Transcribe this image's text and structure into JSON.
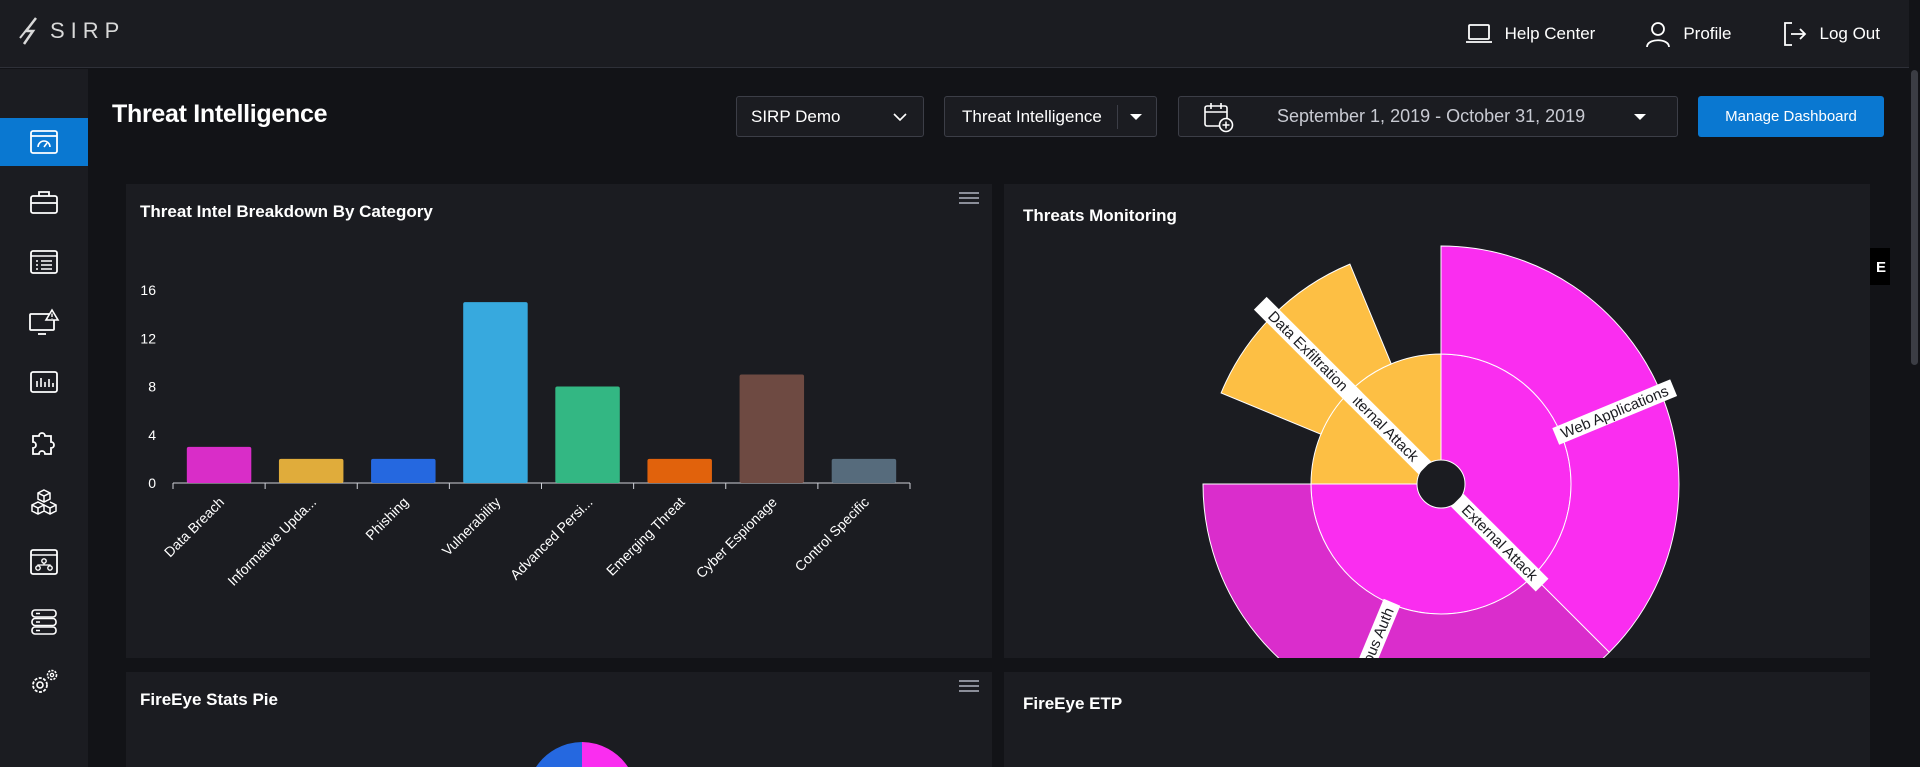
{
  "app": {
    "logo_text": "SIRP"
  },
  "topnav": {
    "help_label": "Help Center",
    "profile_label": "Profile",
    "logout_label": "Log Out"
  },
  "sidebar": {
    "items": [
      {
        "icon": "dashboard-icon",
        "active": true
      },
      {
        "icon": "briefcase-icon",
        "active": false
      },
      {
        "icon": "list-icon",
        "active": false
      },
      {
        "icon": "monitor-alert-icon",
        "active": false
      },
      {
        "icon": "report-chart-icon",
        "active": false
      },
      {
        "icon": "puzzle-icon",
        "active": false
      },
      {
        "icon": "cubes-icon",
        "active": false
      },
      {
        "icon": "network-icon",
        "active": false
      },
      {
        "icon": "database-icon",
        "active": false
      },
      {
        "icon": "gears-icon",
        "active": false
      }
    ]
  },
  "header": {
    "title": "Threat Intelligence",
    "org_select": "SIRP Demo",
    "dashboard_select": "Threat Intelligence",
    "date_range": "September 1, 2019 - October 31, 2019",
    "manage_button": "Manage Dashboard"
  },
  "panels": {
    "breakdown_title": "Threat Intel Breakdown By Category",
    "threats_title": "Threats Monitoring",
    "fireeye_pie_title": "FireEye Stats Pie",
    "fireeye_etp_title": "FireEye ETP",
    "edge_badge": "E"
  },
  "chart_data": [
    {
      "type": "bar",
      "title": "Threat Intel Breakdown By Category",
      "categories": [
        "Data Breach",
        "Informative Upda...",
        "Phishing",
        "Vulnerability",
        "Advanced Persi...",
        "Emerging Threat",
        "Cyber Espionage",
        "Control Specific"
      ],
      "values": [
        3,
        2,
        2,
        15,
        8,
        2,
        9,
        2
      ],
      "colors": [
        "#d92dc8",
        "#e0ac3b",
        "#2568e0",
        "#37a9de",
        "#33b783",
        "#e1620c",
        "#6e4a42",
        "#566b7c"
      ],
      "yticks": [
        0,
        4,
        8,
        12,
        16
      ],
      "ylim": [
        0,
        16
      ],
      "xlabel": "",
      "ylabel": ""
    },
    {
      "type": "sunburst",
      "title": "Threats Monitoring",
      "inner": [
        {
          "name": "External Attack",
          "value": 3,
          "color": "#fa2df0"
        },
        {
          "name": "Internal Attack",
          "value": 1,
          "color": "#fdbf44"
        }
      ],
      "outer": [
        {
          "name": "Web Applications",
          "parent": "External Attack",
          "value": 1,
          "color": "#fa2df0"
        },
        {
          "name": "Suspicious Auth",
          "parent": "External Attack",
          "value": 1,
          "color": "#da2dcc"
        },
        {
          "name": "Data Exfiltration",
          "parent": "Internal Attack",
          "value": 1,
          "color": "#fdbf44"
        }
      ]
    }
  ]
}
